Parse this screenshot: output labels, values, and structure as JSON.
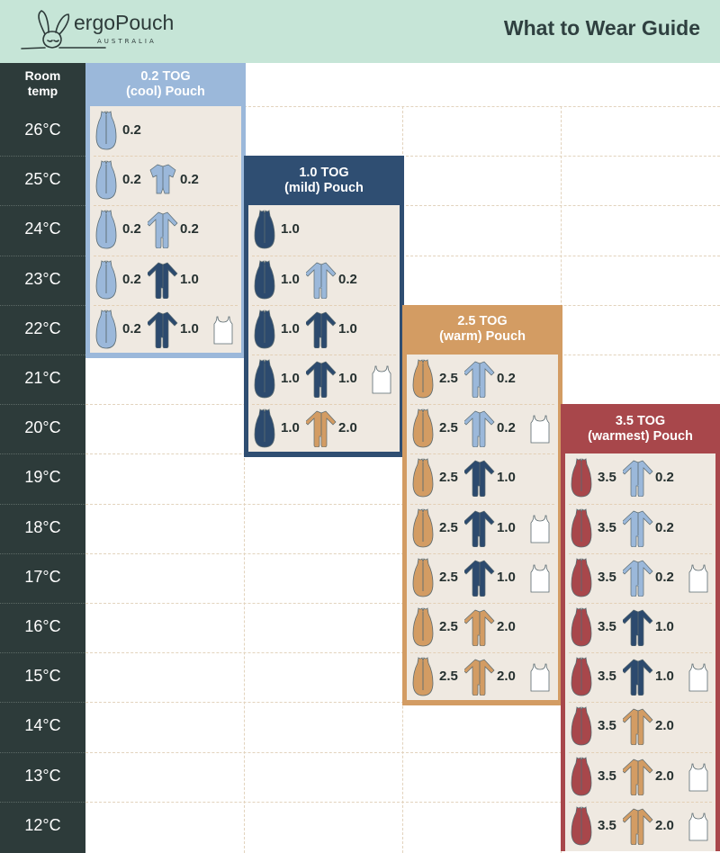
{
  "header": {
    "brand": "ergoPouch",
    "brand_sub": "AUSTRALIA",
    "title": "What to Wear Guide"
  },
  "left_column": {
    "heading_line1": "Room",
    "heading_line2": "temp",
    "temps": [
      "26°C",
      "25°C",
      "24°C",
      "23°C",
      "22°C",
      "21°C",
      "20°C",
      "19°C",
      "18°C",
      "17°C",
      "16°C",
      "15°C",
      "14°C",
      "13°C",
      "12°C"
    ]
  },
  "colors": {
    "header_bg": "#c6e5d7",
    "left_bg": "#2d3b3a",
    "panel_bg": "#efe9e1",
    "tog_0_2": "#9bb8da",
    "tog_1_0": "#2c4a6e",
    "tog_2_5": "#d39c63",
    "tog_3_5": "#a8474b",
    "singlet": "#ffffff"
  },
  "boxes": [
    {
      "line1": "0.2 TOG",
      "line2": "(cool) Pouch",
      "color": "#9bb8da",
      "pouch_color": "#9bb8da",
      "rows": [
        {
          "pouch": "0.2"
        },
        {
          "pouch": "0.2",
          "garment": "short-romper",
          "garment_tog": "0.2"
        },
        {
          "pouch": "0.2",
          "garment": "long-romper",
          "garment_tog": "0.2"
        },
        {
          "pouch": "0.2",
          "garment": "long-romper",
          "garment_tog": "1.0"
        },
        {
          "pouch": "0.2",
          "garment": "long-romper",
          "garment_tog": "1.0",
          "singlet": true
        }
      ]
    },
    {
      "line1": "1.0 TOG",
      "line2": "(mild) Pouch",
      "color": "#2f4e72",
      "pouch_color": "#2c4a6e",
      "rows": [
        {
          "pouch": "1.0"
        },
        {
          "pouch": "1.0",
          "garment": "long-romper",
          "garment_tog": "0.2"
        },
        {
          "pouch": "1.0",
          "garment": "long-romper",
          "garment_tog": "1.0"
        },
        {
          "pouch": "1.0",
          "garment": "long-romper",
          "garment_tog": "1.0",
          "singlet": true
        },
        {
          "pouch": "1.0",
          "garment": "long-romper",
          "garment_tog": "2.0"
        }
      ]
    },
    {
      "line1": "2.5 TOG",
      "line2": "(warm) Pouch",
      "color": "#d39c63",
      "pouch_color": "#d39c63",
      "rows": [
        {
          "pouch": "2.5",
          "garment": "long-romper",
          "garment_tog": "0.2"
        },
        {
          "pouch": "2.5",
          "garment": "long-romper",
          "garment_tog": "0.2",
          "singlet": true
        },
        {
          "pouch": "2.5",
          "garment": "long-romper",
          "garment_tog": "1.0"
        },
        {
          "pouch": "2.5",
          "garment": "long-romper",
          "garment_tog": "1.0",
          "singlet": true
        },
        {
          "pouch": "2.5",
          "garment": "long-romper",
          "garment_tog": "1.0",
          "singlet": true
        },
        {
          "pouch": "2.5",
          "garment": "long-romper",
          "garment_tog": "2.0"
        },
        {
          "pouch": "2.5",
          "garment": "long-romper",
          "garment_tog": "2.0",
          "singlet": true
        }
      ]
    },
    {
      "line1": "3.5 TOG",
      "line2": "(warmest) Pouch",
      "color": "#a8474b",
      "pouch_color": "#a8474b",
      "rows": [
        {
          "pouch": "3.5",
          "garment": "long-romper",
          "garment_tog": "0.2"
        },
        {
          "pouch": "3.5",
          "garment": "long-romper",
          "garment_tog": "0.2"
        },
        {
          "pouch": "3.5",
          "garment": "long-romper",
          "garment_tog": "0.2",
          "singlet": true
        },
        {
          "pouch": "3.5",
          "garment": "long-romper",
          "garment_tog": "1.0"
        },
        {
          "pouch": "3.5",
          "garment": "long-romper",
          "garment_tog": "1.0",
          "singlet": true
        },
        {
          "pouch": "3.5",
          "garment": "long-romper",
          "garment_tog": "2.0"
        },
        {
          "pouch": "3.5",
          "garment": "long-romper",
          "garment_tog": "2.0",
          "singlet": true
        },
        {
          "pouch": "3.5",
          "garment": "long-romper",
          "garment_tog": "2.0",
          "singlet": true
        }
      ]
    }
  ]
}
